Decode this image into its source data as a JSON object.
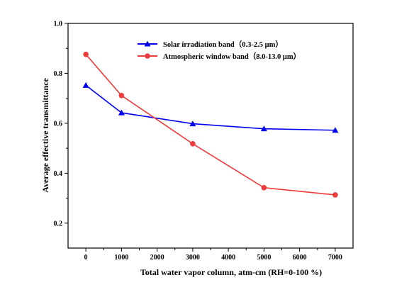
{
  "chart_data": {
    "type": "line",
    "xlabel": "Total water vapor column, atm-cm  (RH=0-100 %)",
    "ylabel": "Average effective transmittance",
    "xlim": [
      -500,
      7500
    ],
    "ylim": [
      0.1,
      1.0
    ],
    "x_ticks": [
      0,
      1000,
      2000,
      3000,
      4000,
      5000,
      6000,
      7000
    ],
    "x_tick_labels": [
      "0",
      "1000",
      "2000",
      "3000",
      "4000",
      "5000",
      "6000",
      "7000"
    ],
    "y_ticks": [
      0.2,
      0.4,
      0.6,
      0.8,
      1.0
    ],
    "y_tick_labels": [
      "0.2",
      "0.4",
      "0.6",
      "0.8",
      "1.0"
    ],
    "grid": false,
    "legend_position": "top-center",
    "series": [
      {
        "name": "Solar irradiation band（0.3-2.5 μm）",
        "color": "#0000ee",
        "marker": "triangle",
        "x": [
          0,
          1000,
          3000,
          5000,
          7000
        ],
        "y": [
          0.752,
          0.642,
          0.598,
          0.578,
          0.572
        ]
      },
      {
        "name": "Atmospheric window band（8.0-13.0 μm）",
        "color": "#ee3b3b",
        "marker": "circle",
        "x": [
          0,
          1000,
          3000,
          5000,
          7000
        ],
        "y": [
          0.876,
          0.711,
          0.518,
          0.342,
          0.313
        ]
      }
    ]
  }
}
